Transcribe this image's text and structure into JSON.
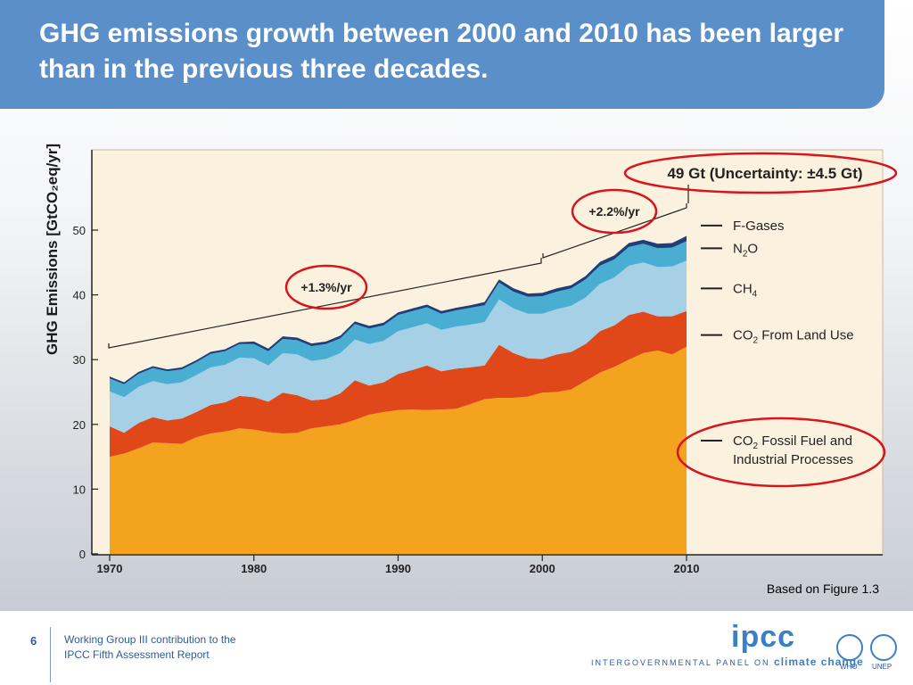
{
  "header": {
    "title": "GHG emissions growth between 2000 and 2010 has been larger than in the previous three decades."
  },
  "chart_data": {
    "type": "area",
    "stacked": true,
    "ylabel": "GHG Emissions [GtCO₂eq/yr]",
    "ylim": [
      0,
      60
    ],
    "yticks": [
      0,
      10,
      20,
      30,
      40,
      50
    ],
    "xlim": [
      1970,
      2010
    ],
    "xticks": [
      1970,
      1980,
      1990,
      2000,
      2010
    ],
    "x": [
      1970,
      1971,
      1972,
      1973,
      1974,
      1975,
      1976,
      1977,
      1978,
      1979,
      1980,
      1981,
      1982,
      1983,
      1984,
      1985,
      1986,
      1987,
      1988,
      1989,
      1990,
      1991,
      1992,
      1993,
      1994,
      1995,
      1996,
      1997,
      1998,
      1999,
      2000,
      2001,
      2002,
      2003,
      2004,
      2005,
      2006,
      2007,
      2008,
      2009,
      2010
    ],
    "series": [
      {
        "name": "CO₂ Fossil Fuel and Industrial Processes",
        "color": "#f3a31d",
        "values": [
          15.0,
          15.5,
          16.3,
          17.2,
          17.1,
          17.0,
          18.0,
          18.6,
          18.9,
          19.4,
          19.2,
          18.8,
          18.6,
          18.7,
          19.4,
          19.7,
          20.0,
          20.7,
          21.5,
          21.9,
          22.2,
          22.3,
          22.2,
          22.3,
          22.4,
          23.1,
          23.9,
          24.1,
          24.1,
          24.3,
          24.9,
          25.0,
          25.4,
          26.7,
          28.0,
          28.9,
          30.0,
          31.0,
          31.4,
          30.8,
          32.0
        ]
      },
      {
        "name": "CO₂ From Land Use",
        "color": "#e0481a",
        "values": [
          4.7,
          3.2,
          3.9,
          3.9,
          3.5,
          3.9,
          3.9,
          4.4,
          4.5,
          5.0,
          5.0,
          4.7,
          6.3,
          5.8,
          4.3,
          4.2,
          4.8,
          6.1,
          4.5,
          4.6,
          5.6,
          6.1,
          6.9,
          5.9,
          6.2,
          5.7,
          5.2,
          8.2,
          6.9,
          5.9,
          5.2,
          5.8,
          5.8,
          5.7,
          6.4,
          6.4,
          6.9,
          6.4,
          5.3,
          5.9,
          5.5
        ]
      },
      {
        "name": "CH₄",
        "color": "#a5d0e6",
        "values": [
          5.4,
          5.5,
          5.6,
          5.6,
          5.6,
          5.6,
          5.7,
          5.8,
          5.8,
          5.9,
          6.0,
          5.6,
          6.1,
          6.3,
          6.1,
          6.2,
          6.2,
          6.3,
          6.4,
          6.4,
          6.6,
          6.6,
          6.5,
          6.4,
          6.5,
          6.6,
          6.7,
          7.0,
          6.9,
          6.9,
          7.0,
          7.0,
          7.1,
          7.2,
          7.3,
          7.4,
          7.6,
          7.6,
          7.6,
          7.7,
          7.8
        ]
      },
      {
        "name": "N₂O",
        "color": "#4aaed2",
        "values": [
          2.0,
          2.0,
          2.0,
          2.0,
          2.0,
          2.0,
          2.0,
          2.1,
          2.1,
          2.1,
          2.2,
          2.2,
          2.2,
          2.2,
          2.3,
          2.3,
          2.3,
          2.4,
          2.4,
          2.4,
          2.5,
          2.5,
          2.5,
          2.5,
          2.5,
          2.6,
          2.6,
          2.6,
          2.6,
          2.6,
          2.7,
          2.7,
          2.7,
          2.8,
          2.8,
          2.8,
          2.9,
          2.9,
          2.9,
          2.9,
          3.0
        ]
      },
      {
        "name": "F-Gases",
        "color": "#1f3f7a",
        "values": [
          0.3,
          0.3,
          0.3,
          0.3,
          0.3,
          0.3,
          0.3,
          0.3,
          0.3,
          0.3,
          0.4,
          0.4,
          0.4,
          0.4,
          0.4,
          0.4,
          0.4,
          0.4,
          0.4,
          0.4,
          0.4,
          0.4,
          0.4,
          0.4,
          0.4,
          0.4,
          0.5,
          0.5,
          0.5,
          0.5,
          0.5,
          0.5,
          0.5,
          0.5,
          0.6,
          0.6,
          0.6,
          0.6,
          0.7,
          0.7,
          0.8
        ]
      }
    ],
    "legend": {
      "placement": "right",
      "entries": [
        {
          "key": "fgases",
          "label": "F-Gases",
          "y": 50.7
        },
        {
          "key": "n2o",
          "label_main": "N",
          "label_sub": "2",
          "label_tail": "O",
          "y": 47.2
        },
        {
          "key": "ch4",
          "label_main": "CH",
          "label_sub": "4",
          "label_tail": "",
          "y": 41.0
        },
        {
          "key": "co2land",
          "label_main": "CO",
          "label_sub": "2",
          "label_tail": " From Land Use",
          "y": 33.8
        },
        {
          "key": "co2fossil",
          "label_main": "CO",
          "label_sub": "2",
          "label_tail": " Fossil Fuel and",
          "label_line2": "Industrial Processes",
          "y": 17.5
        }
      ]
    },
    "annotations": {
      "total_2010": "49 Gt (Uncertainty: ±4.5 Gt)",
      "growth_1970_2000": "+1.3%/yr",
      "growth_2000_2010": "+2.2%/yr"
    }
  },
  "figure_ref": "Based on Figure 1.3",
  "footer": {
    "page_number": "6",
    "line1": "Working Group III contribution to the",
    "line2": "IPCC Fifth Assessment Report",
    "logo": "ipcc",
    "tagline_pre": "INTERGOVERNMENTAL PANEL ON ",
    "tagline_accent": "climate change",
    "partner1": "WHO",
    "partner2": "UNEP"
  }
}
